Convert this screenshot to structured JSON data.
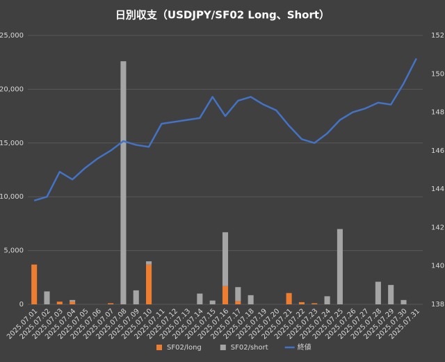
{
  "chart_data": {
    "type": "bar-line",
    "title": "日別収支（USDJPY/SF02 Long、Short）",
    "categories": [
      "2025.07.01",
      "2025.07.02",
      "2025.07.03",
      "2025.07.04",
      "2025.07.05",
      "2025.07.06",
      "2025.07.07",
      "2025.07.08",
      "2025.07.09",
      "2025.07.10",
      "2025.07.11",
      "2025.07.12",
      "2025.07.13",
      "2025.07.14",
      "2025.07.15",
      "2025.07.16",
      "2025.07.17",
      "2025.07.18",
      "2025.07.19",
      "2025.07.20",
      "2025.07.21",
      "2025.07.22",
      "2025.07.23",
      "2025.07.24",
      "2025.07.25",
      "2025.07.26",
      "2025.07.27",
      "2025.07.28",
      "2025.07.29",
      "2025.07.30",
      "2025.07.31"
    ],
    "series": [
      {
        "name": "SF02/long",
        "color": "#ed7d31",
        "stacked": true,
        "values": [
          3700,
          0,
          250,
          250,
          0,
          0,
          100,
          0,
          0,
          3700,
          0,
          0,
          0,
          0,
          0,
          1700,
          300,
          0,
          0,
          0,
          1050,
          200,
          100,
          0,
          0,
          0,
          0,
          0,
          0,
          0,
          0
        ]
      },
      {
        "name": "SF02/short",
        "color": "#a5a5a5",
        "stacked": true,
        "values": [
          0,
          1200,
          0,
          150,
          0,
          0,
          0,
          22600,
          1300,
          300,
          0,
          0,
          0,
          1000,
          350,
          5000,
          1300,
          850,
          0,
          0,
          0,
          0,
          0,
          750,
          7000,
          0,
          0,
          2100,
          1800,
          400,
          0
        ]
      },
      {
        "name": "終値",
        "color": "#4472c4",
        "axis": "y2",
        "values": [
          143.4,
          143.6,
          144.9,
          144.5,
          145.1,
          145.6,
          146.0,
          146.5,
          146.3,
          146.2,
          147.4,
          147.5,
          147.6,
          147.7,
          148.8,
          147.8,
          148.6,
          148.8,
          148.4,
          148.1,
          147.3,
          146.6,
          146.4,
          146.9,
          147.6,
          148.0,
          148.2,
          148.5,
          148.4,
          149.5,
          150.8
        ]
      }
    ],
    "ylim": [
      0,
      25000
    ],
    "yticks": [
      0,
      {
        "value": 5000,
        "label": "5,000"
      },
      {
        "value": 10000,
        "label": "10,000"
      },
      {
        "value": 15000,
        "label": "15,000"
      },
      {
        "value": 20000,
        "label": "20,000"
      },
      {
        "value": 25000,
        "label": "25,000"
      }
    ],
    "y2lim": [
      138,
      152
    ],
    "y2ticks": [
      138,
      140,
      142,
      144,
      146,
      148,
      150,
      152
    ],
    "grid": true,
    "legend": "bottom"
  }
}
